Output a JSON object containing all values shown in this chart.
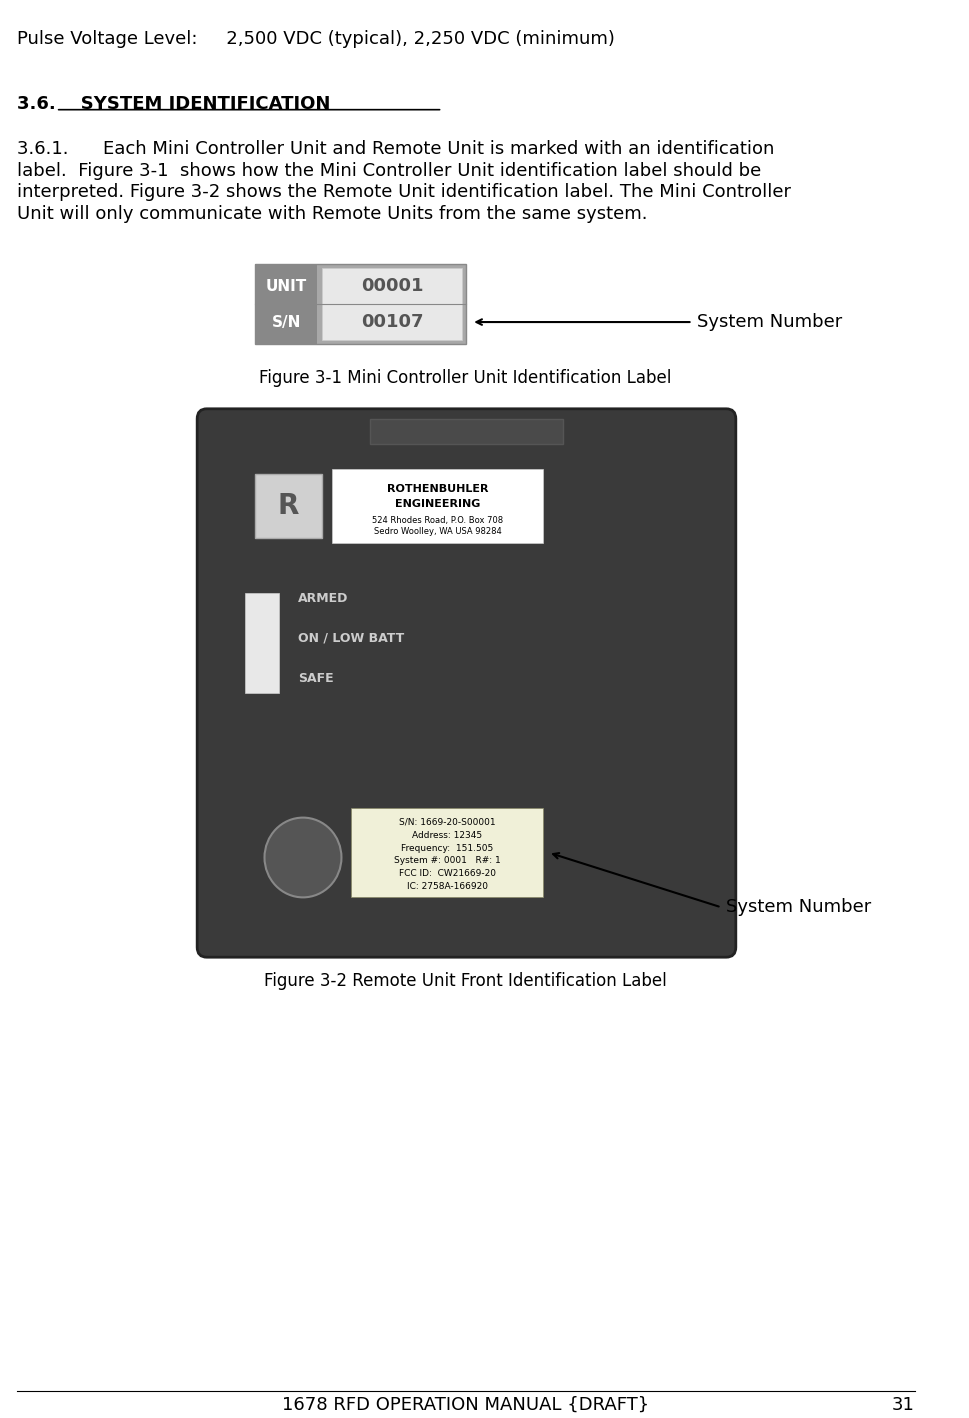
{
  "bg_color": "#ffffff",
  "header_text": "Pulse Voltage Level:     2,500 VDC (typical), 2,250 VDC (minimum)",
  "section_heading": "3.6.    SYSTEM IDENTIFICATION",
  "para_361": "3.6.1.      Each Mini Controller Unit and Remote Unit is marked with an identification label.  Figure 3-1  shows how the Mini Controller Unit identification label should be interpreted. Figure 3-2 shows the Remote Unit identification label. The Mini Controller Unit will only communicate with Remote Units from the same system.",
  "fig1_caption": "Figure 3-1 Mini Controller Unit Identification Label",
  "fig2_caption": "Figure 3-2 Remote Unit Front Identification Label",
  "footer_text": "1678 RFD OPERATION MANUAL {DRAFT}",
  "footer_page": "31",
  "label1_unit_text": "UNIT",
  "label1_sn_text": "S/N",
  "label1_unit_val": "00001",
  "label1_sn_val": "00107",
  "label1_bg": "#a0a0a0",
  "label1_box_bg": "#d0d0d0",
  "label1_text_color": "#ffffff",
  "label1_val_color": "#555555",
  "system_number_label": "System Number",
  "remote_label_sn": "S/N: 1669-20-S00001",
  "remote_label_addr": "Address: 12345",
  "remote_label_freq": "Frequency:  151.505",
  "remote_label_sys": "System #: 0001   R#: 1",
  "remote_label_fcc": "FCC ID:  CW21669-20",
  "remote_label_ic": "IC: 2758A-166920",
  "remote_bg": "#3a3a3a",
  "remote_label_bg": "#f0f0f0",
  "font_size_body": 13,
  "font_size_small": 10,
  "font_size_caption": 12
}
